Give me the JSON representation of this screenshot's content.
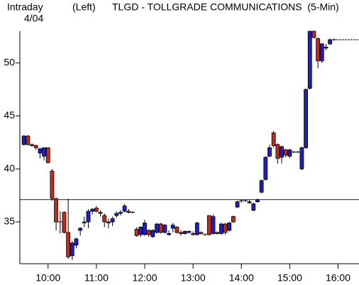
{
  "chart_data": {
    "type": "candlestick",
    "header": "Intraday",
    "date": "4/04",
    "axis_side": "(Left)",
    "title": "TLGD - TOLLGRADE COMMUNICATIONS  (5-Min)",
    "x": [
      "9:30",
      "9:35",
      "9:40",
      "9:45",
      "9:50",
      "9:55",
      "10:00",
      "10:05",
      "10:10",
      "10:15",
      "10:20",
      "10:25",
      "10:30",
      "10:35",
      "10:40",
      "10:45",
      "10:50",
      "10:55",
      "11:00",
      "11:05",
      "11:10",
      "11:15",
      "11:20",
      "11:25",
      "11:30",
      "11:35",
      "11:40",
      "11:45",
      "11:50",
      "11:55",
      "12:00",
      "12:05",
      "12:10",
      "12:15",
      "12:20",
      "12:25",
      "12:30",
      "12:35",
      "12:40",
      "12:45",
      "12:50",
      "12:55",
      "13:00",
      "13:05",
      "13:10",
      "13:15",
      "13:20",
      "13:25",
      "13:30",
      "13:35",
      "13:40",
      "13:45",
      "13:50",
      "13:55",
      "14:00",
      "14:05",
      "14:10",
      "14:15",
      "14:20",
      "14:25",
      "14:30",
      "14:35",
      "14:40",
      "14:45",
      "14:50",
      "14:55",
      "15:00",
      "15:05",
      "15:10",
      "15:15",
      "15:20",
      "15:25",
      "15:30",
      "15:35",
      "15:40",
      "15:45",
      "15:50",
      "15:55"
    ],
    "open": [
      42.3,
      43.1,
      42.3,
      42.2,
      41.5,
      41.2,
      42.0,
      39.8,
      37.2,
      35.0,
      35.9,
      34.0,
      31.8,
      32.8,
      34.2,
      35.0,
      35.0,
      36.0,
      36.3,
      35.9,
      35.6,
      35.0,
      35.0,
      35.6,
      35.8,
      36.0,
      36.0,
      35.9,
      34.3,
      33.8,
      33.8,
      34.2,
      33.6,
      34.0,
      34.8,
      34.0,
      33.8,
      34.4,
      34.5,
      34.0,
      33.9,
      34.1,
      33.9,
      33.8,
      34.0,
      33.8,
      35.6,
      33.9,
      34.0,
      33.9,
      34.8,
      34.2,
      35.5,
      36.4,
      37.0,
      37.0,
      36.9,
      36.1,
      36.9,
      37.8,
      39.0,
      41.2,
      43.4,
      42.3,
      41.1,
      41.8,
      41.2,
      41.6,
      41.6,
      40.0,
      42.0,
      47.6,
      53.0,
      52.3,
      50.2,
      51.4,
      51.8,
      52.2
    ],
    "high": [
      43.2,
      43.2,
      42.4,
      42.3,
      42.0,
      42.0,
      42.0,
      40.0,
      37.3,
      36.0,
      36.0,
      37.2,
      33.2,
      33.5,
      34.5,
      35.5,
      36.2,
      36.3,
      36.5,
      36.1,
      35.8,
      35.3,
      35.5,
      36.0,
      36.1,
      36.7,
      36.2,
      36.0,
      34.5,
      34.6,
      35.2,
      34.3,
      34.3,
      34.9,
      34.9,
      34.8,
      34.2,
      34.9,
      34.6,
      34.2,
      34.2,
      34.2,
      34.1,
      35.0,
      34.1,
      33.9,
      35.6,
      35.7,
      34.1,
      34.9,
      34.9,
      35.0,
      35.6,
      37.0,
      37.1,
      37.1,
      37.1,
      36.8,
      37.2,
      39.0,
      41.2,
      42.3,
      43.6,
      42.4,
      42.2,
      41.9,
      41.9,
      41.7,
      41.7,
      42.1,
      47.6,
      53.0,
      53.0,
      52.4,
      51.9,
      51.8,
      52.3,
      52.3
    ],
    "low": [
      42.2,
      42.2,
      42.1,
      41.8,
      41.0,
      40.8,
      40.5,
      37.0,
      34.2,
      33.9,
      33.9,
      31.5,
      31.4,
      32.5,
      33.7,
      34.5,
      34.4,
      35.7,
      35.9,
      35.5,
      34.5,
      34.4,
      34.6,
      35.4,
      35.6,
      35.9,
      35.8,
      35.8,
      33.6,
      33.6,
      33.7,
      33.6,
      33.5,
      33.9,
      33.9,
      33.9,
      33.7,
      34.0,
      33.9,
      33.7,
      33.8,
      33.9,
      33.7,
      33.7,
      33.8,
      33.7,
      33.7,
      33.8,
      33.8,
      33.8,
      33.8,
      34.1,
      34.9,
      36.3,
      36.8,
      36.9,
      36.7,
      36.0,
      36.8,
      37.7,
      38.9,
      41.1,
      42.0,
      40.5,
      40.5,
      41.1,
      41.0,
      41.5,
      41.5,
      39.9,
      41.9,
      47.5,
      52.3,
      49.5,
      50.0,
      51.2,
      51.7,
      52.1
    ],
    "close": [
      43.1,
      42.3,
      42.2,
      42.0,
      41.9,
      42.0,
      40.6,
      37.2,
      35.0,
      35.0,
      34.0,
      31.7,
      33.0,
      33.4,
      34.4,
      34.9,
      36.0,
      36.2,
      36.0,
      35.8,
      35.0,
      34.9,
      35.3,
      35.8,
      35.9,
      36.5,
      35.9,
      35.9,
      33.7,
      34.5,
      34.9,
      33.8,
      34.2,
      34.8,
      34.0,
      34.7,
      33.9,
      34.7,
      34.0,
      33.9,
      34.1,
      34.0,
      33.8,
      34.9,
      33.9,
      33.8,
      33.8,
      35.5,
      33.9,
      34.8,
      34.0,
      34.9,
      35.0,
      36.9,
      37.0,
      37.0,
      36.8,
      36.7,
      37.1,
      38.9,
      41.1,
      42.0,
      42.2,
      41.0,
      42.1,
      41.3,
      41.8,
      41.6,
      41.6,
      42.0,
      47.5,
      53.0,
      52.4,
      50.2,
      51.8,
      51.5,
      52.2,
      52.2
    ],
    "up_color": "#1e1ec8",
    "down_color": "#c82818",
    "ref_line": 37.1,
    "ref_color": "#1a1a8c",
    "xlim": [
      "9:25",
      "16:26"
    ],
    "xticks": [
      "10:00",
      "11:00",
      "12:00",
      "13:00",
      "14:00",
      "15:00",
      "16:00"
    ],
    "ylim": [
      31.05,
      53
    ],
    "yticks": [
      35,
      40,
      45,
      50
    ]
  }
}
